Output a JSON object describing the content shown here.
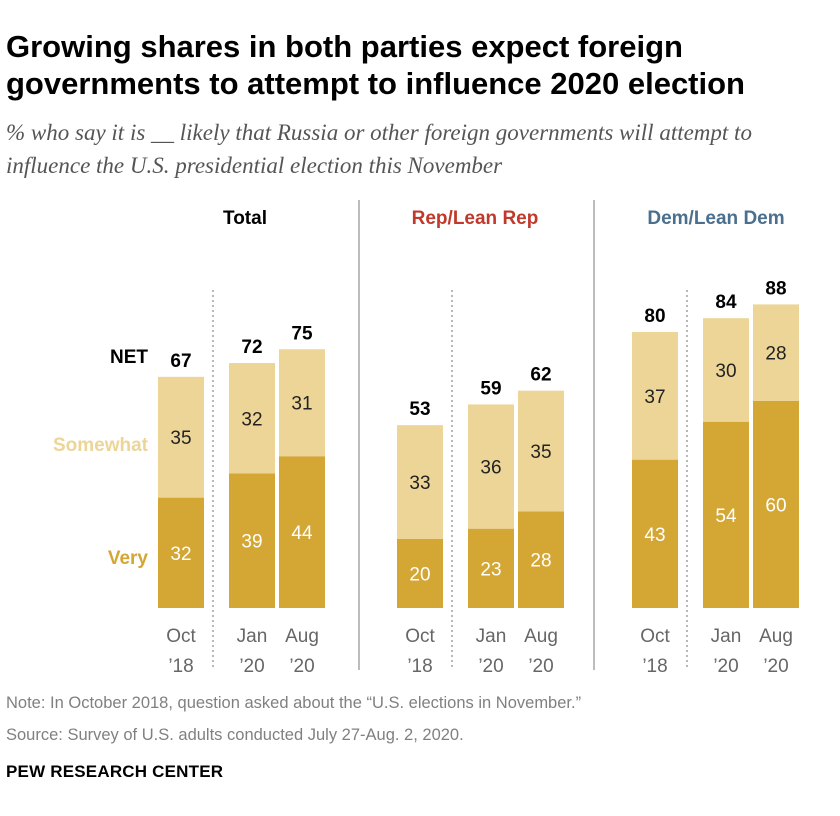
{
  "title": "Growing shares in both parties expect foreign governments to attempt to influence 2020 election",
  "subtitle": "% who say it is __ likely that Russia or other foreign governments will attempt to influence the U.S. presidential election this November",
  "note": "Note: In October 2018, question asked about the “U.S. elections in November.”",
  "source": "Source: Survey of U.S. adults conducted July 27-Aug. 2, 2020.",
  "brand": "PEW RESEARCH CENTER",
  "colors": {
    "very": "#d4a634",
    "somewhat": "#ecd597",
    "rep": "#c0392b",
    "dem": "#4a6f8f",
    "text": "#000000",
    "axis": "#666666"
  },
  "chart_data": {
    "type": "bar",
    "stacked": true,
    "row_labels": {
      "net": "NET",
      "somewhat": "Somewhat",
      "very": "Very"
    },
    "groups": [
      {
        "name": "Total",
        "color_key": "text",
        "categories": [
          [
            "Oct",
            "’18"
          ],
          [
            "Jan",
            "’20"
          ],
          [
            "Aug",
            "’20"
          ]
        ],
        "series": [
          {
            "name": "Very",
            "values": [
              32,
              39,
              44
            ]
          },
          {
            "name": "Somewhat",
            "values": [
              35,
              32,
              31
            ]
          }
        ],
        "net": [
          67,
          72,
          75
        ]
      },
      {
        "name": "Rep/Lean Rep",
        "color_key": "rep",
        "categories": [
          [
            "Oct",
            "’18"
          ],
          [
            "Jan",
            "’20"
          ],
          [
            "Aug",
            "’20"
          ]
        ],
        "series": [
          {
            "name": "Very",
            "values": [
              20,
              23,
              28
            ]
          },
          {
            "name": "Somewhat",
            "values": [
              33,
              36,
              35
            ]
          }
        ],
        "net": [
          53,
          59,
          62
        ]
      },
      {
        "name": "Dem/Lean Dem",
        "color_key": "dem",
        "categories": [
          [
            "Oct",
            "’18"
          ],
          [
            "Jan",
            "’20"
          ],
          [
            "Aug",
            "’20"
          ]
        ],
        "series": [
          {
            "name": "Very",
            "values": [
              43,
              54,
              60
            ]
          },
          {
            "name": "Somewhat",
            "values": [
              37,
              30,
              28
            ]
          }
        ],
        "net": [
          80,
          84,
          88
        ]
      }
    ],
    "ylim": [
      0,
      100
    ]
  }
}
